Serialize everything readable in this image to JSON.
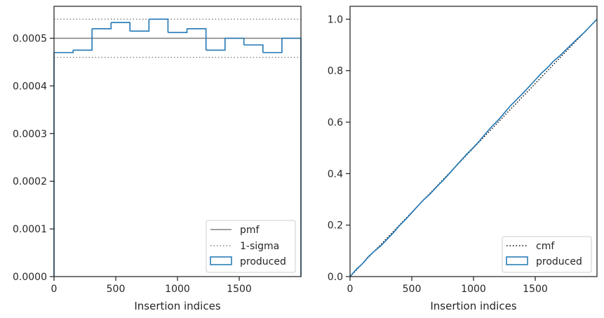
{
  "chart_data": [
    {
      "type": "histogram",
      "xlabel": "Insertion indices",
      "ylabel": "",
      "xlim": [
        0,
        2000
      ],
      "ylim": [
        0,
        0.000567
      ],
      "xticks": [
        0,
        500,
        1000,
        1500
      ],
      "xtick_labels": [
        "0",
        "500",
        "1000",
        "1500"
      ],
      "yticks": [
        0,
        0.0001,
        0.0002,
        0.0003,
        0.0004,
        0.0005
      ],
      "ytick_labels": [
        "0.0000",
        "0.0001",
        "0.0002",
        "0.0003",
        "0.0004",
        "0.0005"
      ],
      "grid": false,
      "legend_position": "bottom-right",
      "pmf": {
        "name": "pmf",
        "value": 0.0005,
        "color": "#808080"
      },
      "sigma": {
        "name": "1-sigma",
        "lower": 0.00046,
        "upper": 0.00054,
        "color": "#808080"
      },
      "histogram": {
        "name": "produced",
        "color": "#1f77b4",
        "bin_edges": [
          0,
          154,
          308,
          462,
          615,
          769,
          923,
          1077,
          1231,
          1385,
          1538,
          1692,
          1846,
          2000
        ],
        "values": [
          0.00047,
          0.000475,
          0.00052,
          0.000533,
          0.000515,
          0.00054,
          0.000512,
          0.00052,
          0.000475,
          0.0005,
          0.000486,
          0.00047,
          0.0005
        ]
      }
    },
    {
      "type": "line",
      "xlabel": "Insertion indices",
      "ylabel": "",
      "xlim": [
        0,
        2000
      ],
      "ylim": [
        0,
        1.05
      ],
      "xticks": [
        0,
        500,
        1000,
        1500
      ],
      "xtick_labels": [
        "0",
        "500",
        "1000",
        "1500"
      ],
      "yticks": [
        0,
        0.2,
        0.4,
        0.6,
        0.8,
        1.0
      ],
      "ytick_labels": [
        "0.0",
        "0.2",
        "0.4",
        "0.6",
        "0.8",
        "1.0"
      ],
      "grid": false,
      "legend_position": "bottom-right",
      "series": [
        {
          "name": "cmf",
          "style": "dotted",
          "color": "#000000",
          "x": [
            0,
            2000
          ],
          "y": [
            0,
            1
          ]
        },
        {
          "name": "produced",
          "style": "solid",
          "color": "#1f77b4",
          "x": [
            0,
            50,
            100,
            150,
            200,
            250,
            300,
            350,
            400,
            450,
            500,
            550,
            600,
            650,
            700,
            750,
            800,
            850,
            900,
            950,
            1000,
            1050,
            1100,
            1150,
            1200,
            1250,
            1300,
            1350,
            1400,
            1450,
            1500,
            1550,
            1600,
            1650,
            1700,
            1750,
            1800,
            1850,
            1900,
            1950,
            2000
          ],
          "y": [
            0,
            0.028,
            0.05,
            0.078,
            0.1,
            0.12,
            0.145,
            0.17,
            0.198,
            0.222,
            0.248,
            0.275,
            0.3,
            0.322,
            0.348,
            0.372,
            0.398,
            0.425,
            0.452,
            0.478,
            0.502,
            0.528,
            0.557,
            0.584,
            0.608,
            0.636,
            0.664,
            0.688,
            0.712,
            0.738,
            0.764,
            0.79,
            0.812,
            0.838,
            0.858,
            0.882,
            0.905,
            0.928,
            0.95,
            0.975,
            1.0
          ]
        }
      ]
    }
  ]
}
